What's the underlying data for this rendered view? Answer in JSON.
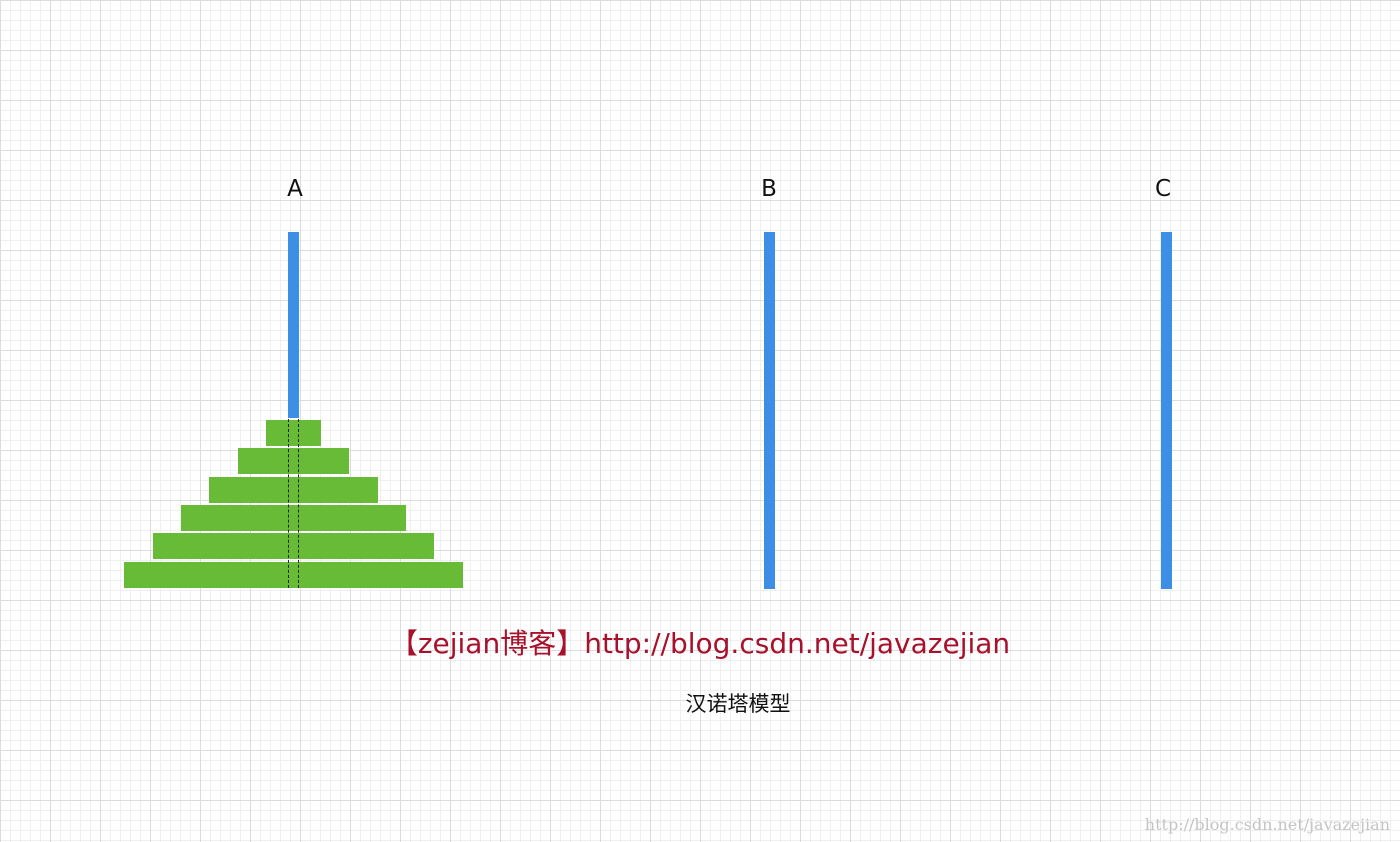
{
  "pegs": [
    {
      "label": "A"
    },
    {
      "label": "B"
    },
    {
      "label": "C"
    }
  ],
  "disks_on_peg": "A",
  "disk_count": 6,
  "watermark_text": "【zejian博客】http://blog.csdn.net/javazejian",
  "caption": "汉诺塔模型",
  "corner_watermark": "http://blog.csdn.net/javazejian",
  "colors": {
    "rod": "#3d8fe6",
    "disk": "#67bb37",
    "watermark": "#a8112b",
    "grid_major": "#dcdcdc",
    "grid_minor": "#efefef"
  }
}
